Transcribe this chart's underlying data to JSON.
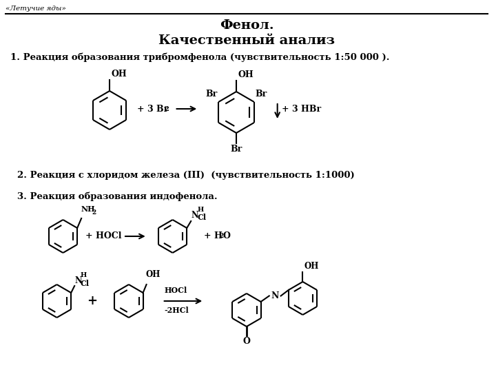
{
  "bg_color": "#ffffff",
  "header_text": "«Летучие яды»",
  "title_line1": "Фенол.",
  "title_line2": "Качественный анализ",
  "reaction1_label": "1. Реакция образования трибромфенола (чувствительность 1:50 000 ).",
  "reaction2_label": "2. Реакция с хлоридом железа (III)  (чувствительность 1:1000)",
  "reaction3_label": "3. Реакция образования индофенола."
}
